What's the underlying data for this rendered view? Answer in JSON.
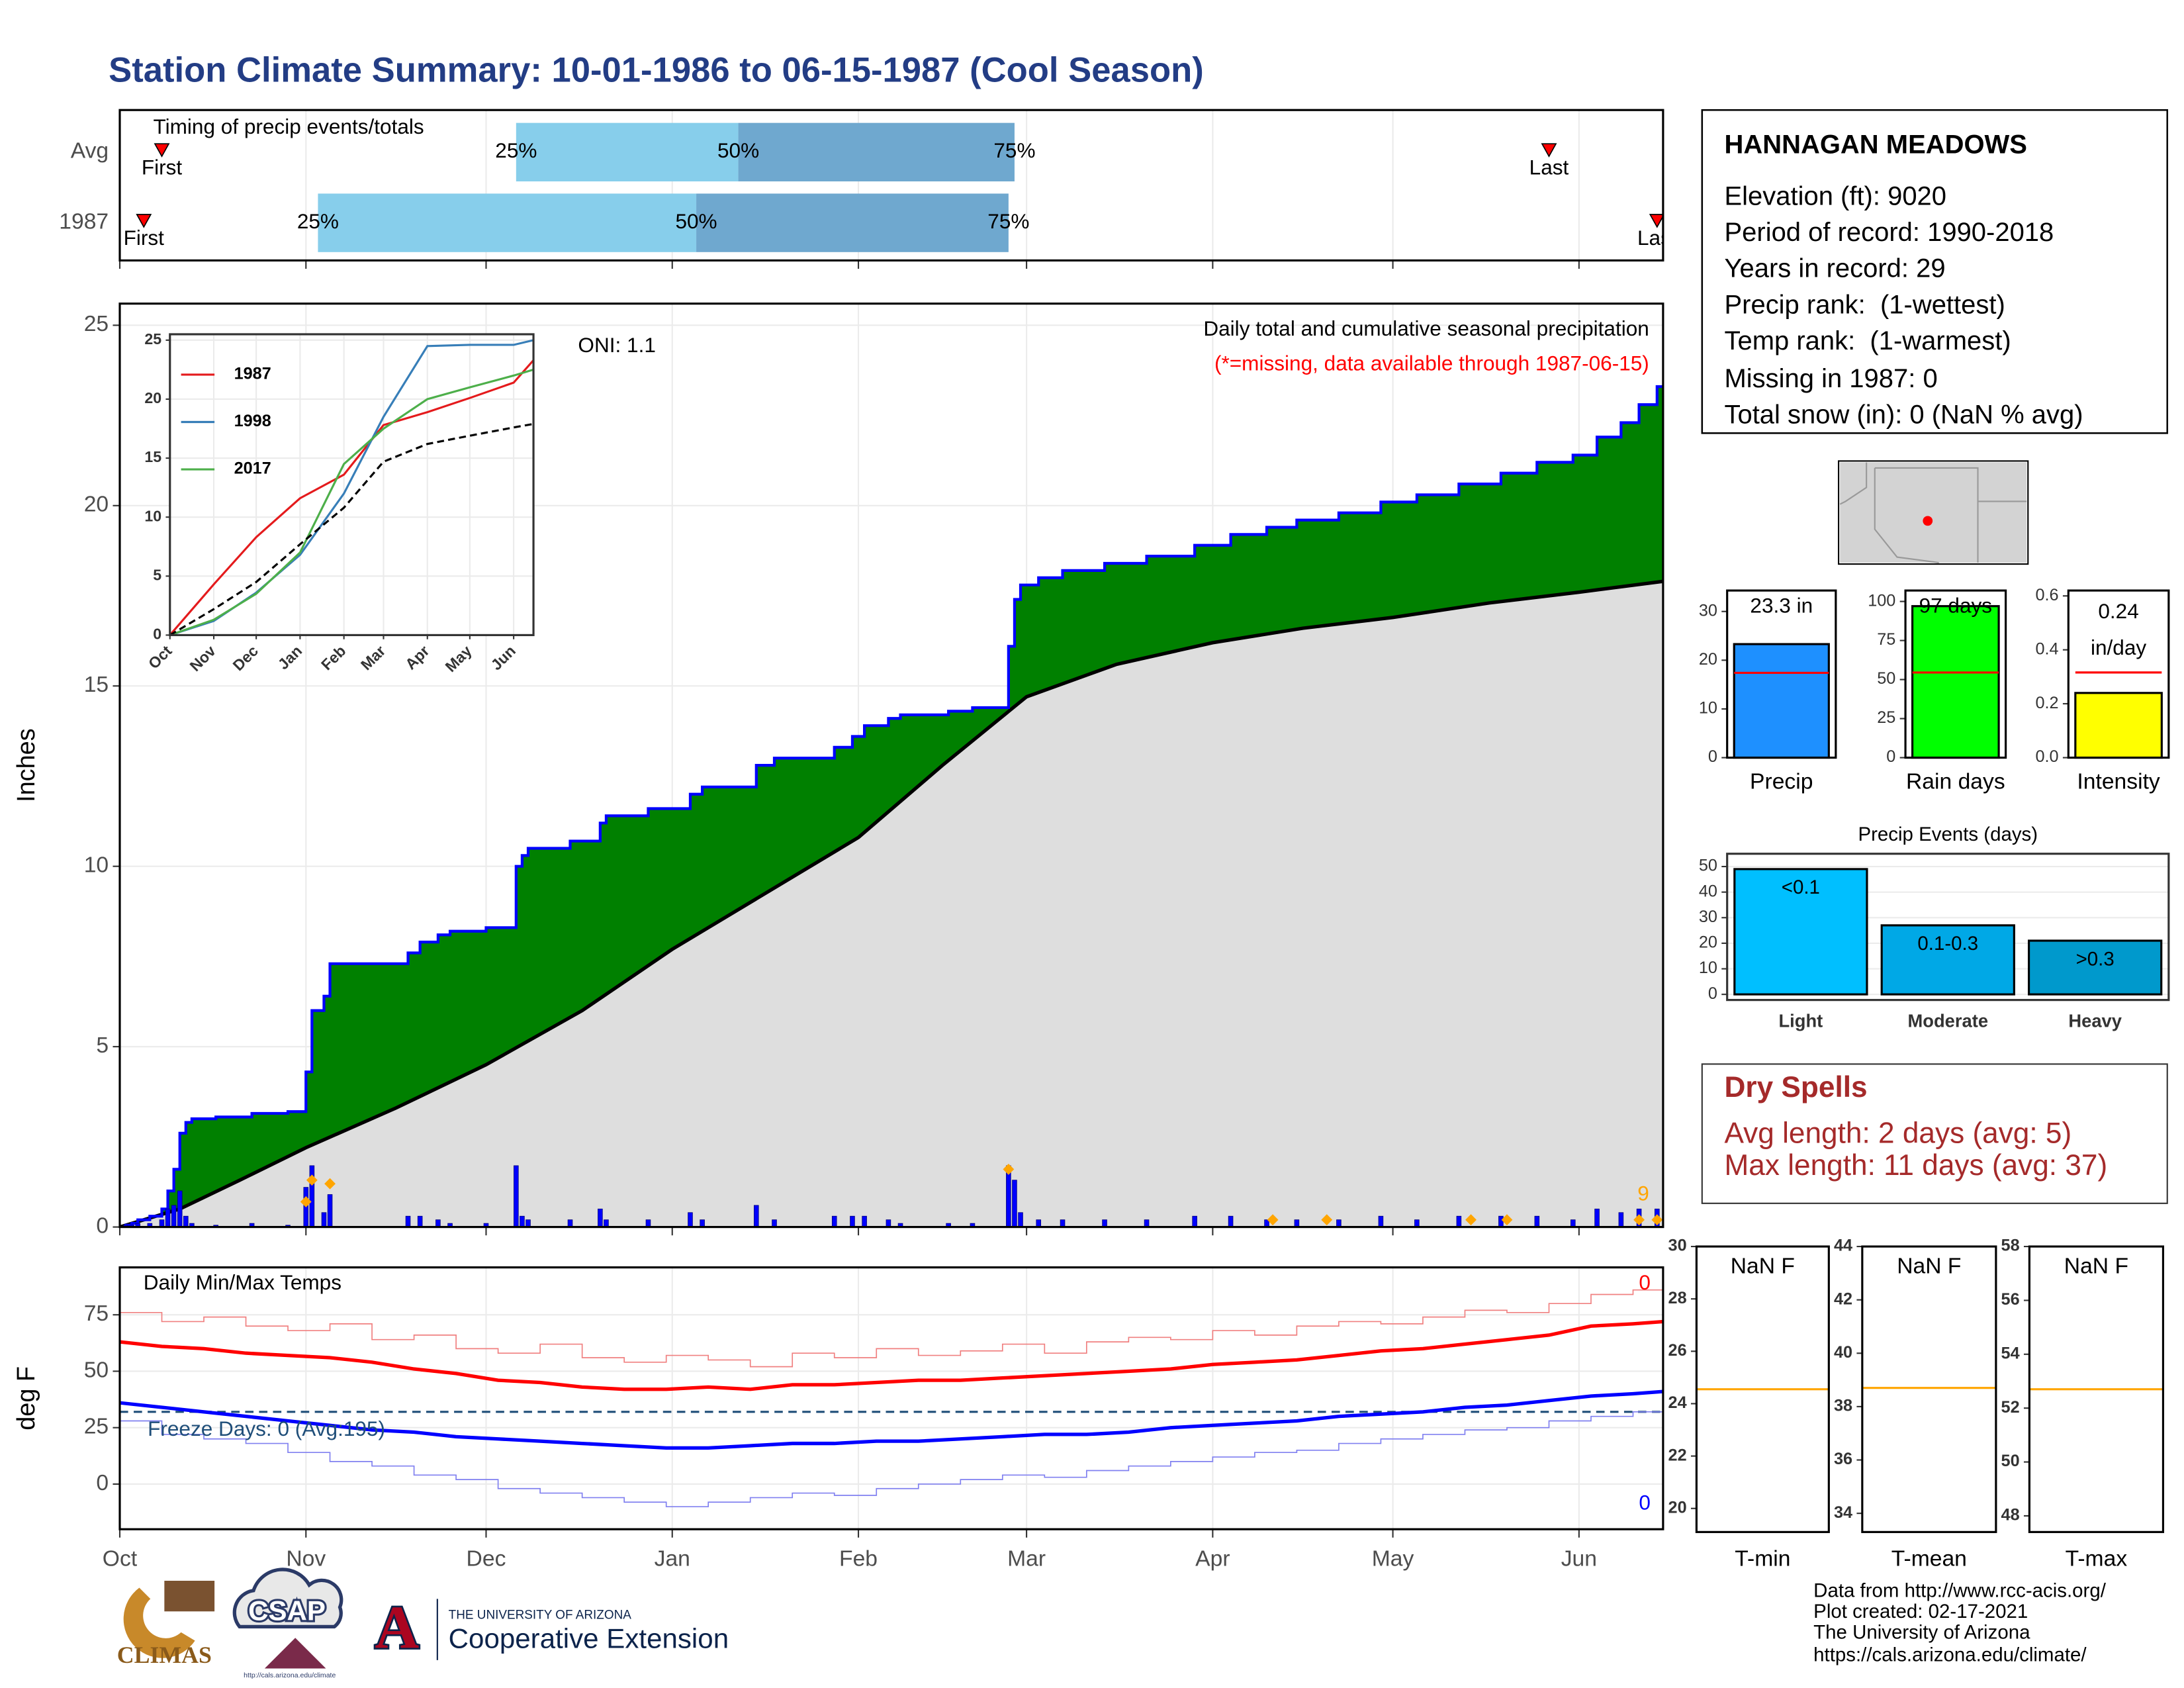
{
  "title": "Station Climate Summary: 10-01-1986 to 06-15-1987 (Cool Season)",
  "station": {
    "name": "HANNAGAN MEADOWS",
    "lines": [
      "Elevation (ft): 9020",
      "Period of record: 1990-2018",
      "Years in record: 29",
      "Precip rank:  (1-wettest)",
      "Temp rank:  (1-warmest)",
      "Missing in 1987: 0",
      "Total snow (in): 0 (NaN % avg)"
    ]
  },
  "dry_spells": {
    "title": "Dry Spells",
    "lines": [
      "Avg length: 2 days (avg: 5)",
      "Max length: 11 days (avg: 37)"
    ]
  },
  "footer": [
    "Data from http://www.rcc-acis.org/",
    "Plot created: 02-17-2021",
    "The University of Arizona",
    "https://cals.arizona.edu/climate/"
  ],
  "logos": [
    "CLIMAS",
    "CSAP",
    "http://cals.arizona.edu/climate",
    "A",
    "THE UNIVERSITY OF ARIZONA",
    "Cooperative Extension"
  ],
  "chart_data": [
    {
      "type": "timing",
      "title": "Timing of precip events/totals",
      "xlim": [
        0,
        257
      ],
      "xticks": [
        0,
        31,
        61,
        92,
        123,
        151,
        182,
        212,
        243
      ],
      "colors": [
        "#87ceeb",
        "#6fa8cf"
      ],
      "marker_color": "#ff0000",
      "point_labels": [
        "First",
        "25%",
        "50%",
        "75%",
        "Last"
      ],
      "rows": [
        {
          "name": "Avg",
          "values": [
            7,
            66,
            103,
            149,
            238
          ]
        },
        {
          "name": "1987",
          "values": [
            4,
            33,
            96,
            148,
            256
          ]
        }
      ]
    },
    {
      "type": "cumulative_step",
      "title": "Daily total and cumulative seasonal precipitation",
      "subtitle": "(*=missing, data available through 1987-06-15)",
      "subtitle_color": "#ff0000",
      "ylabel": "Inches",
      "annotations": [
        {
          "text": "ONI: 1.1",
          "color": "#000000"
        },
        {
          "text": "9",
          "color": "#ffa500"
        }
      ],
      "xlim": [
        0,
        257
      ],
      "ylim": [
        0,
        25.6
      ],
      "xticks": [
        0,
        31,
        61,
        92,
        123,
        151,
        182,
        212,
        243
      ],
      "yticks": [
        0,
        5,
        10,
        15,
        20,
        25
      ],
      "grid": true,
      "fill_color": "#008000",
      "daily": {
        "color": "#0000ff",
        "x": [
          1,
          2,
          3,
          5,
          7,
          8,
          9,
          10,
          11,
          12,
          16,
          22,
          28,
          31,
          32,
          34,
          35,
          48,
          50,
          53,
          55,
          61,
          66,
          67,
          68,
          75,
          80,
          81,
          88,
          95,
          97,
          106,
          109,
          119,
          122,
          124,
          128,
          130,
          138,
          142,
          148,
          149,
          150,
          153,
          157,
          164,
          171,
          179,
          185,
          191,
          196,
          203,
          210,
          216,
          223,
          230,
          236,
          242,
          246,
          250,
          253,
          256
        ],
        "values": [
          0.05,
          0.05,
          0.1,
          0.1,
          0.2,
          0.5,
          0.6,
          1.0,
          0.3,
          0.1,
          0.05,
          0.1,
          0.05,
          1.1,
          1.7,
          0.4,
          0.9,
          0.3,
          0.3,
          0.2,
          0.1,
          0.1,
          1.7,
          0.3,
          0.2,
          0.2,
          0.5,
          0.2,
          0.2,
          0.4,
          0.2,
          0.6,
          0.2,
          0.3,
          0.3,
          0.3,
          0.2,
          0.1,
          0.1,
          0.1,
          1.7,
          1.3,
          0.4,
          0.2,
          0.2,
          0.2,
          0.2,
          0.3,
          0.3,
          0.2,
          0.2,
          0.2,
          0.3,
          0.2,
          0.3,
          0.3,
          0.3,
          0.2,
          0.5,
          0.4,
          0.5,
          0.5
        ]
      },
      "average": {
        "color": "#000000",
        "fill": "#dedede",
        "x": [
          0,
          10,
          20,
          31,
          46,
          61,
          77,
          92,
          107,
          123,
          137,
          151,
          166,
          182,
          197,
          212,
          228,
          243,
          257
        ],
        "values": [
          0,
          0.5,
          1.3,
          2.2,
          3.3,
          4.5,
          6.0,
          7.7,
          9.2,
          10.8,
          12.8,
          14.7,
          15.6,
          16.2,
          16.6,
          16.9,
          17.3,
          17.6,
          17.9
        ]
      },
      "markers": {
        "color": "#ffa500",
        "x": [
          31,
          32,
          35,
          148,
          192,
          201,
          225,
          231,
          253,
          256
        ],
        "values": [
          0.7,
          1.3,
          1.2,
          1.6,
          0.2,
          0.2,
          0.2,
          0.2,
          0.2,
          0.2
        ]
      }
    },
    {
      "type": "line",
      "xlim": [
        0,
        257
      ],
      "ylim": [
        0,
        25.5
      ],
      "grid": true,
      "legend": "top-left",
      "xticks": [
        {
          "value": 0,
          "label": "Oct"
        },
        {
          "value": 31,
          "label": "Nov"
        },
        {
          "value": 61,
          "label": "Dec"
        },
        {
          "value": 92,
          "label": "Jan"
        },
        {
          "value": 123,
          "label": "Feb"
        },
        {
          "value": 151,
          "label": "Mar"
        },
        {
          "value": 182,
          "label": "Apr"
        },
        {
          "value": 212,
          "label": "May"
        },
        {
          "value": 243,
          "label": "Jun"
        }
      ],
      "yticks": [
        0,
        5,
        10,
        15,
        20,
        25
      ],
      "x": [
        0,
        31,
        61,
        92,
        123,
        151,
        182,
        212,
        243,
        257
      ],
      "series": [
        {
          "name": "1987",
          "color": "#e41a1c",
          "width": 1.5,
          "values": [
            0,
            4.3,
            8.3,
            11.6,
            13.6,
            17.8,
            18.9,
            20.1,
            21.4,
            23.3
          ]
        },
        {
          "name": "1998",
          "color": "#377eb8",
          "width": 1.5,
          "values": [
            0,
            1.2,
            3.6,
            6.8,
            12.0,
            18.5,
            24.5,
            24.6,
            24.6,
            25.0
          ]
        },
        {
          "name": "2017",
          "color": "#4daf4a",
          "width": 1.5,
          "values": [
            0,
            1.3,
            3.5,
            7.0,
            14.5,
            17.5,
            20.0,
            21.0,
            22.0,
            22.5
          ]
        },
        {
          "color": "#000000",
          "width": 1.5,
          "dash": true,
          "values": [
            0,
            2.2,
            4.5,
            7.7,
            10.8,
            14.7,
            16.2,
            16.9,
            17.6,
            17.9
          ]
        }
      ]
    },
    {
      "type": "line",
      "title": "Daily Min/Max Temps",
      "ylabel": "deg F",
      "xlim": [
        0,
        257
      ],
      "ylim": [
        -20,
        96
      ],
      "grid": true,
      "xticks": [
        {
          "value": 0,
          "label": "Oct"
        },
        {
          "value": 31,
          "label": "Nov"
        },
        {
          "value": 61,
          "label": "Dec"
        },
        {
          "value": 92,
          "label": "Jan"
        },
        {
          "value": 123,
          "label": "Feb"
        },
        {
          "value": 151,
          "label": "Mar"
        },
        {
          "value": 182,
          "label": "Apr"
        },
        {
          "value": 212,
          "label": "May"
        },
        {
          "value": 243,
          "label": "Jun"
        }
      ],
      "yticks": [
        0,
        25,
        50,
        75
      ],
      "x": [
        0,
        7,
        14,
        21,
        28,
        35,
        42,
        49,
        56,
        63,
        70,
        77,
        84,
        91,
        98,
        105,
        112,
        119,
        126,
        133,
        140,
        147,
        154,
        161,
        168,
        175,
        182,
        189,
        196,
        203,
        210,
        217,
        224,
        231,
        238,
        245,
        252,
        257
      ],
      "series": [
        {
          "color": "#f08080",
          "width": 0.8,
          "step": true,
          "values": [
            76,
            72,
            74,
            70,
            68,
            71,
            64,
            66,
            60,
            58,
            62,
            56,
            54,
            57,
            55,
            52,
            58,
            56,
            60,
            57,
            59,
            62,
            58,
            63,
            65,
            64,
            68,
            66,
            70,
            72,
            71,
            74,
            77,
            76,
            80,
            84,
            86,
            83
          ]
        },
        {
          "color": "#ff0000",
          "width": 2.5,
          "values": [
            63,
            61,
            60,
            58,
            57,
            56,
            54,
            51,
            49,
            46,
            45,
            43,
            42,
            42,
            43,
            42,
            44,
            44,
            45,
            46,
            46,
            47,
            48,
            49,
            50,
            51,
            53,
            54,
            55,
            57,
            59,
            60,
            62,
            64,
            66,
            70,
            71,
            72
          ]
        },
        {
          "color": "#0000ff",
          "width": 2.5,
          "values": [
            36,
            34,
            32,
            30,
            28,
            26,
            24,
            23,
            21,
            20,
            19,
            18,
            17,
            16,
            16,
            17,
            18,
            18,
            19,
            19,
            20,
            21,
            22,
            22,
            23,
            25,
            26,
            27,
            28,
            30,
            31,
            32,
            34,
            35,
            37,
            39,
            40,
            41
          ]
        },
        {
          "color": "#8080f0",
          "width": 0.8,
          "step": true,
          "values": [
            28,
            22,
            20,
            18,
            14,
            10,
            8,
            4,
            2,
            -2,
            -4,
            -6,
            -8,
            -10,
            -8,
            -6,
            -4,
            -5,
            -2,
            0,
            2,
            4,
            3,
            6,
            8,
            10,
            12,
            14,
            15,
            18,
            20,
            22,
            24,
            25,
            28,
            30,
            32,
            30
          ]
        }
      ],
      "freeze_line": {
        "value": 32,
        "color": "#1f4e79",
        "dash": true
      },
      "annotations": [
        {
          "text": "Freeze Days: 0 (Avg:195)",
          "color": "#1f4e79"
        },
        {
          "text": "0",
          "color": "#ff0000"
        },
        {
          "text": "0",
          "color": "#0000ff"
        }
      ]
    },
    {
      "type": "summary_bar",
      "category": "Precip",
      "value": 23.3,
      "value_label": "23.3 in",
      "average": 17.4,
      "average_color": "#ff0000",
      "color": "#1e90ff",
      "ylim": [
        0,
        34.3
      ],
      "yticks": [
        0,
        10,
        20,
        30
      ],
      "grid": false
    },
    {
      "type": "summary_bar",
      "category": "Rain days",
      "value": 97,
      "value_label": "97 days",
      "average": 54.5,
      "average_color": "#ff0000",
      "color": "#00ff00",
      "ylim": [
        0,
        107
      ],
      "yticks": [
        0,
        25,
        50,
        75,
        100
      ],
      "grid": false
    },
    {
      "type": "summary_bar",
      "category": "Intensity",
      "value": 0.24,
      "value_label": [
        "0.24",
        "in/day"
      ],
      "average": 0.316,
      "average_color": "#ff0000",
      "color": "#ffff00",
      "ylim": [
        0,
        0.62
      ],
      "yticks": [
        {
          "value": 0,
          "label": "0.0"
        },
        0.2,
        0.4,
        0.6
      ],
      "grid": false
    },
    {
      "type": "bar",
      "title": "Precip Events (days)",
      "categories": [
        "Light",
        "Moderate",
        "Heavy"
      ],
      "values": [
        49,
        27,
        21
      ],
      "bin_labels": [
        "<0.1",
        "0.1-0.3",
        ">0.3"
      ],
      "colors": [
        "#00bfff",
        "#00a8e6",
        "#0099cc"
      ],
      "ylim": [
        -2.2,
        55
      ],
      "yticks": [
        0,
        10,
        20,
        30,
        40,
        50
      ],
      "grid": true
    },
    {
      "type": "summary_box",
      "category": "T-min",
      "value": null,
      "value_label": "NaN F",
      "average": 24.55,
      "average_color": "#ffa500",
      "ylim": [
        19.1,
        30
      ],
      "yticks": [
        20,
        22,
        24,
        26,
        28,
        30
      ]
    },
    {
      "type": "summary_box",
      "category": "T-mean",
      "value": null,
      "value_label": "NaN F",
      "average": 38.7,
      "average_color": "#ffa500",
      "ylim": [
        33.3,
        44
      ],
      "yticks": [
        34,
        36,
        38,
        40,
        42,
        44
      ]
    },
    {
      "type": "summary_box",
      "category": "T-max",
      "value": null,
      "value_label": "NaN F",
      "average": 52.7,
      "average_color": "#ffa500",
      "ylim": [
        47.4,
        58
      ],
      "yticks": [
        48,
        50,
        52,
        54,
        56,
        58
      ]
    }
  ]
}
